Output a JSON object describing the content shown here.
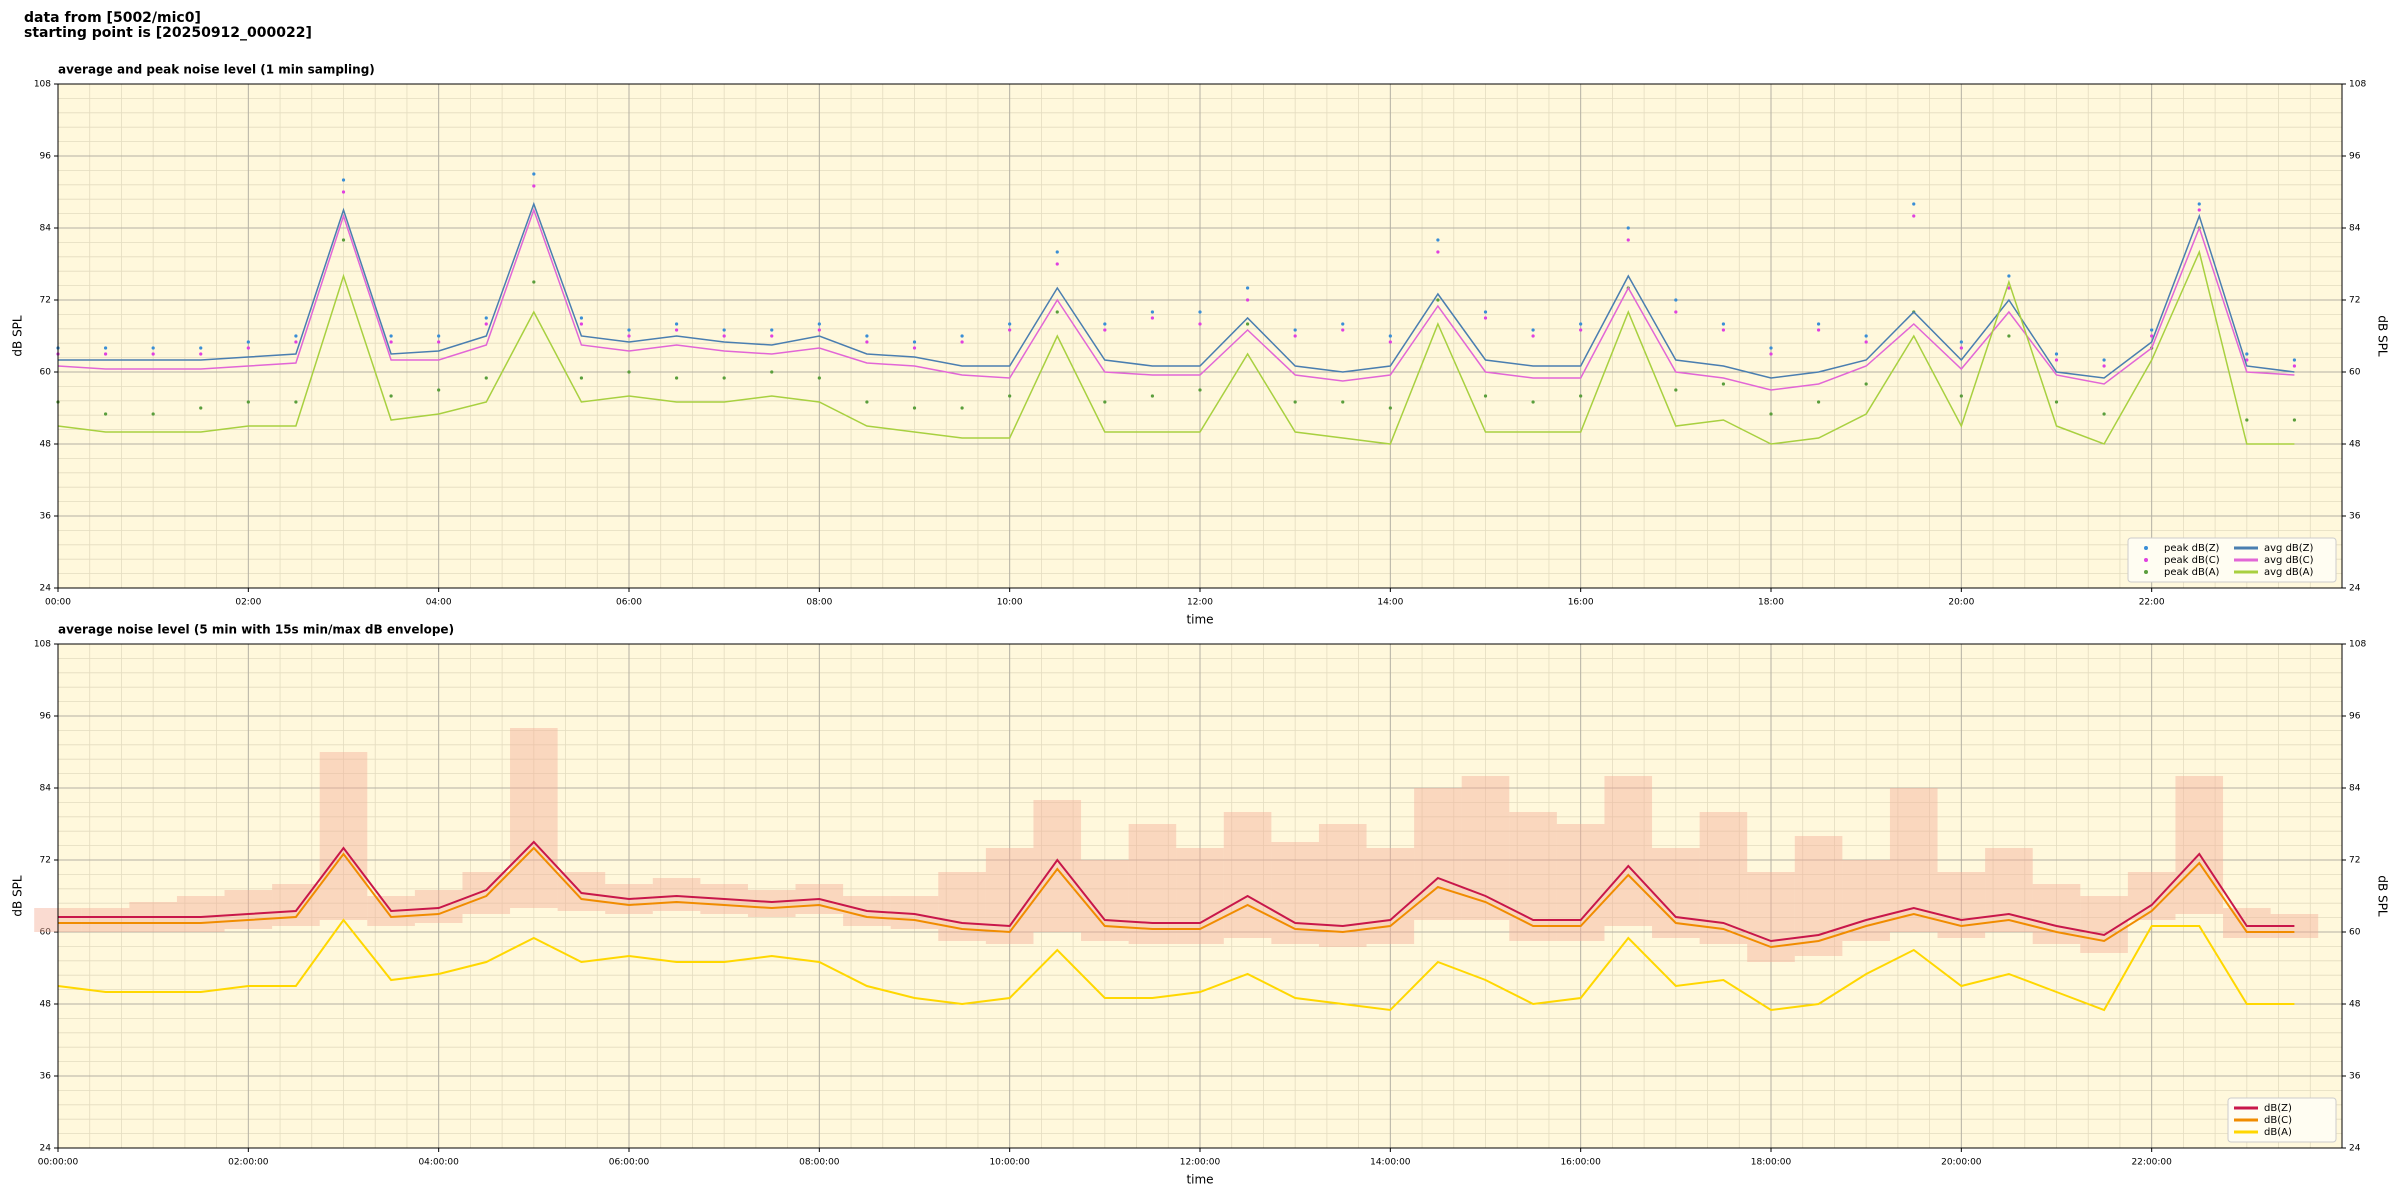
{
  "header": [
    "data from [5002/mic0]",
    "starting point is [20250912_000022]"
  ],
  "chart_data": [
    {
      "type": "line",
      "title": "average and peak noise level (1 min sampling)",
      "x_label": "time",
      "y_label": "dB SPL",
      "x": [
        0,
        30,
        60,
        90,
        120,
        150,
        180,
        210,
        240,
        270,
        300,
        330,
        360,
        390,
        420,
        450,
        480,
        510,
        540,
        570,
        600,
        630,
        660,
        690,
        720,
        750,
        780,
        810,
        840,
        870,
        900,
        930,
        960,
        990,
        1020,
        1050,
        1080,
        1110,
        1140,
        1170,
        1200,
        1230,
        1260,
        1290,
        1320,
        1350,
        1380,
        1410
      ],
      "xlim": [
        0,
        1440
      ],
      "xticks": [
        {
          "value": 0,
          "label": "00:00"
        },
        {
          "value": 120,
          "label": "02:00"
        },
        {
          "value": 240,
          "label": "04:00"
        },
        {
          "value": 360,
          "label": "06:00"
        },
        {
          "value": 480,
          "label": "08:00"
        },
        {
          "value": 600,
          "label": "10:00"
        },
        {
          "value": 720,
          "label": "12:00"
        },
        {
          "value": 840,
          "label": "14:00"
        },
        {
          "value": 960,
          "label": "16:00"
        },
        {
          "value": 1080,
          "label": "18:00"
        },
        {
          "value": 1200,
          "label": "20:00"
        },
        {
          "value": 1320,
          "label": "22:00"
        }
      ],
      "ylim": [
        24,
        108
      ],
      "yticks": [
        24,
        36,
        48,
        60,
        72,
        84,
        96,
        108
      ],
      "grid": true,
      "legend": "lower right",
      "legend_columns": 2,
      "background": "#fff8dc",
      "series": [
        {
          "name": "peak dB(Z)",
          "type": "scatter",
          "color": "#3a8ed6",
          "values": [
            64,
            64,
            64,
            64,
            65,
            66,
            92,
            66,
            66,
            69,
            93,
            69,
            67,
            68,
            67,
            67,
            68,
            66,
            65,
            66,
            68,
            80,
            68,
            70,
            70,
            74,
            67,
            68,
            66,
            82,
            70,
            67,
            68,
            84,
            72,
            68,
            64,
            68,
            66,
            88,
            65,
            76,
            63,
            62,
            67,
            88,
            63,
            62
          ]
        },
        {
          "name": "peak dB(C)",
          "type": "scatter",
          "color": "#e040e0",
          "values": [
            63,
            63,
            63,
            63,
            64,
            65,
            90,
            65,
            65,
            68,
            91,
            68,
            66,
            67,
            66,
            66,
            67,
            65,
            64,
            65,
            67,
            78,
            67,
            69,
            68,
            72,
            66,
            67,
            65,
            80,
            69,
            66,
            67,
            82,
            70,
            67,
            63,
            67,
            65,
            86,
            64,
            74,
            62,
            61,
            66,
            87,
            62,
            61
          ]
        },
        {
          "name": "peak dB(A)",
          "type": "scatter",
          "color": "#5a9e3c",
          "values": [
            55,
            53,
            53,
            54,
            55,
            55,
            82,
            56,
            57,
            59,
            75,
            59,
            60,
            59,
            59,
            60,
            59,
            55,
            54,
            54,
            56,
            70,
            55,
            56,
            57,
            68,
            55,
            55,
            54,
            72,
            56,
            55,
            56,
            74,
            57,
            58,
            53,
            55,
            58,
            70,
            56,
            66,
            55,
            53,
            64,
            84,
            52,
            52
          ]
        },
        {
          "name": "avg dB(Z)",
          "type": "line",
          "color": "#4a7eb0",
          "values": [
            62,
            62,
            62,
            62,
            62.5,
            63,
            87,
            63,
            63.5,
            66,
            88,
            66,
            65,
            66,
            65,
            64.5,
            66,
            63,
            62.5,
            61,
            61,
            74,
            62,
            61,
            61,
            69,
            61,
            60,
            61,
            73,
            62,
            61,
            61,
            76,
            62,
            61,
            59,
            60,
            62,
            70,
            62,
            72,
            60,
            59,
            65,
            86,
            61,
            60
          ]
        },
        {
          "name": "avg dB(C)",
          "type": "line",
          "color": "#e266d6",
          "values": [
            61,
            60.5,
            60.5,
            60.5,
            61,
            61.5,
            86,
            62,
            62,
            64.5,
            87,
            64.5,
            63.5,
            64.5,
            63.5,
            63,
            64,
            61.5,
            61,
            59.5,
            59,
            72,
            60,
            59.5,
            59.5,
            67,
            59.5,
            58.5,
            59.5,
            71,
            60,
            59,
            59,
            74,
            60,
            59,
            57,
            58,
            61,
            68,
            60.5,
            70,
            59.5,
            58,
            64,
            84,
            60,
            59.5
          ]
        },
        {
          "name": "avg dB(A)",
          "type": "line",
          "color": "#a8d040",
          "values": [
            51,
            50,
            50,
            50,
            51,
            51,
            76,
            52,
            53,
            55,
            70,
            55,
            56,
            55,
            55,
            56,
            55,
            51,
            50,
            49,
            49,
            66,
            50,
            50,
            50,
            63,
            50,
            49,
            48,
            68,
            50,
            50,
            50,
            70,
            51,
            52,
            48,
            49,
            53,
            66,
            51,
            75,
            51,
            48,
            62,
            80,
            48,
            48
          ]
        }
      ]
    },
    {
      "type": "line",
      "title": "average noise level (5 min with 15s min/max dB envelope)",
      "x_label": "time",
      "y_label": "dB SPL",
      "x": [
        0,
        30,
        60,
        90,
        120,
        150,
        180,
        210,
        240,
        270,
        300,
        330,
        360,
        390,
        420,
        450,
        480,
        510,
        540,
        570,
        600,
        630,
        660,
        690,
        720,
        750,
        780,
        810,
        840,
        870,
        900,
        930,
        960,
        990,
        1020,
        1050,
        1080,
        1110,
        1140,
        1170,
        1200,
        1230,
        1260,
        1290,
        1320,
        1350,
        1380,
        1410
      ],
      "xlim": [
        0,
        1440
      ],
      "xticks": [
        {
          "value": 0,
          "label": "00:00:00"
        },
        {
          "value": 120,
          "label": "02:00:00"
        },
        {
          "value": 240,
          "label": "04:00:00"
        },
        {
          "value": 360,
          "label": "06:00:00"
        },
        {
          "value": 480,
          "label": "08:00:00"
        },
        {
          "value": 600,
          "label": "10:00:00"
        },
        {
          "value": 720,
          "label": "12:00:00"
        },
        {
          "value": 840,
          "label": "14:00:00"
        },
        {
          "value": 960,
          "label": "16:00:00"
        },
        {
          "value": 1080,
          "label": "18:00:00"
        },
        {
          "value": 1200,
          "label": "20:00:00"
        },
        {
          "value": 1320,
          "label": "22:00:00"
        }
      ],
      "ylim": [
        24,
        108
      ],
      "yticks": [
        24,
        36,
        48,
        60,
        72,
        84,
        96,
        108
      ],
      "grid": true,
      "legend": "lower right",
      "legend_columns": 1,
      "background": "#fff8dc",
      "envelope": {
        "color": "#f4b09a",
        "upper": [
          64,
          64,
          65,
          66,
          67,
          68,
          90,
          66,
          67,
          70,
          94,
          70,
          68,
          69,
          68,
          67,
          68,
          66,
          66,
          70,
          74,
          82,
          72,
          78,
          74,
          80,
          75,
          78,
          74,
          84,
          86,
          80,
          78,
          86,
          74,
          80,
          70,
          76,
          72,
          84,
          70,
          74,
          68,
          66,
          70,
          86,
          64,
          63
        ],
        "lower": [
          60,
          60,
          60,
          60,
          60.5,
          61,
          62,
          61,
          61.5,
          63,
          64,
          63.5,
          63,
          63.5,
          63,
          62.5,
          63,
          61,
          60.5,
          58.5,
          58,
          60,
          58.5,
          58,
          58,
          59,
          58,
          57.5,
          58,
          62,
          62,
          58.5,
          58.5,
          61,
          59,
          58,
          55,
          56,
          58.5,
          60,
          59,
          60,
          58,
          56.5,
          62,
          63,
          59,
          59
        ]
      },
      "series": [
        {
          "name": "dB(Z)",
          "type": "line",
          "color": "#c8174a",
          "values": [
            62.5,
            62.5,
            62.5,
            62.5,
            63,
            63.5,
            74,
            63.5,
            64,
            67,
            75,
            66.5,
            65.5,
            66,
            65.5,
            65,
            65.5,
            63.5,
            63,
            61.5,
            61,
            72,
            62,
            61.5,
            61.5,
            66,
            61.5,
            61,
            62,
            69,
            66,
            62,
            62,
            71,
            62.5,
            61.5,
            58.5,
            59.5,
            62,
            64,
            62,
            63,
            61,
            59.5,
            64.5,
            73,
            61,
            61
          ]
        },
        {
          "name": "dB(C)",
          "type": "line",
          "color": "#f08c00",
          "values": [
            61.5,
            61.5,
            61.5,
            61.5,
            62,
            62.5,
            73,
            62.5,
            63,
            66,
            74,
            65.5,
            64.5,
            65,
            64.5,
            64,
            64.5,
            62.5,
            62,
            60.5,
            60,
            70.5,
            61,
            60.5,
            60.5,
            64.5,
            60.5,
            60,
            61,
            67.5,
            65,
            61,
            61,
            69.5,
            61.5,
            60.5,
            57.5,
            58.5,
            61,
            63,
            61,
            62,
            60,
            58.5,
            63.5,
            71.5,
            60,
            60
          ]
        },
        {
          "name": "dB(A)",
          "type": "line",
          "color": "#ffd700",
          "values": [
            51,
            50,
            50,
            50,
            51,
            51,
            62,
            52,
            53,
            55,
            59,
            55,
            56,
            55,
            55,
            56,
            55,
            51,
            49,
            48,
            49,
            57,
            49,
            49,
            50,
            53,
            49,
            48,
            47,
            55,
            52,
            48,
            49,
            59,
            51,
            52,
            47,
            48,
            53,
            57,
            51,
            53,
            50,
            47,
            61,
            61,
            48,
            48
          ]
        }
      ]
    }
  ]
}
